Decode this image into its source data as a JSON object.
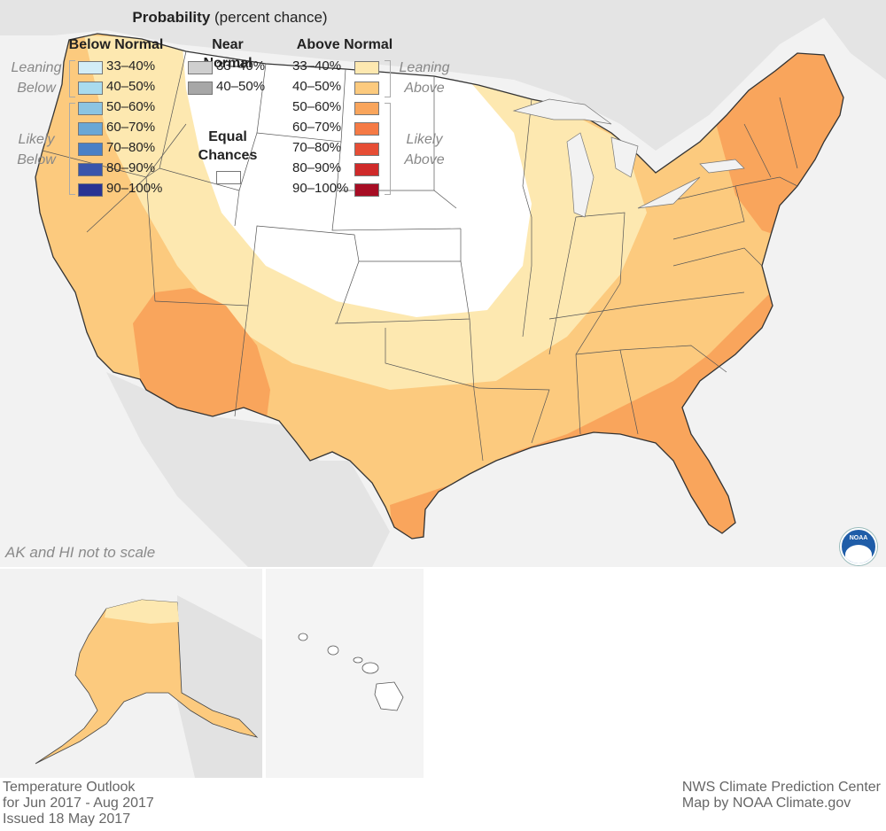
{
  "map": {
    "note": "AK and HI not to scale"
  },
  "legend": {
    "title_bold": "Probability",
    "title_rest": " (percent chance)",
    "below_header": "Below Normal",
    "near_header_line1": "Near",
    "near_header_line2": "Normal",
    "above_header": "Above Normal",
    "leaning_below_1": "Leaning",
    "leaning_below_2": "Below",
    "likely_below_1": "Likely",
    "likely_below_2": "Below",
    "leaning_above_1": "Leaning",
    "leaning_above_2": "Above",
    "likely_above_1": "Likely",
    "likely_above_2": "Above",
    "equal_1": "Equal",
    "equal_2": "Chances",
    "below": [
      {
        "label": "33–40%",
        "color": "#d3edf7"
      },
      {
        "label": "40–50%",
        "color": "#a9dbee"
      },
      {
        "label": "50–60%",
        "color": "#8cc4e2"
      },
      {
        "label": "60–70%",
        "color": "#6aa7d6"
      },
      {
        "label": "70–80%",
        "color": "#4a80c6"
      },
      {
        "label": "80–90%",
        "color": "#3a55ab"
      },
      {
        "label": "90–100%",
        "color": "#283393"
      }
    ],
    "near": [
      {
        "label": "33–40%",
        "color": "#cfcfcf"
      },
      {
        "label": "40–50%",
        "color": "#a7a7a7"
      }
    ],
    "above": [
      {
        "label": "33–40%",
        "color": "#fde8b0"
      },
      {
        "label": "40–50%",
        "color": "#fcca7e"
      },
      {
        "label": "50–60%",
        "color": "#f9a55c"
      },
      {
        "label": "60–70%",
        "color": "#f57a45"
      },
      {
        "label": "70–80%",
        "color": "#e64d35"
      },
      {
        "label": "80–90%",
        "color": "#cf2a2a"
      },
      {
        "label": "90–100%",
        "color": "#a70d24"
      }
    ],
    "equal_color": "#ffffff"
  },
  "footer": {
    "left_1": "Temperature Outlook",
    "left_2": "for Jun 2017 - Aug 2017",
    "left_3": "Issued 18 May 2017",
    "right_1": "NWS Climate Prediction Center",
    "right_2": "Map by NOAA Climate.gov"
  }
}
